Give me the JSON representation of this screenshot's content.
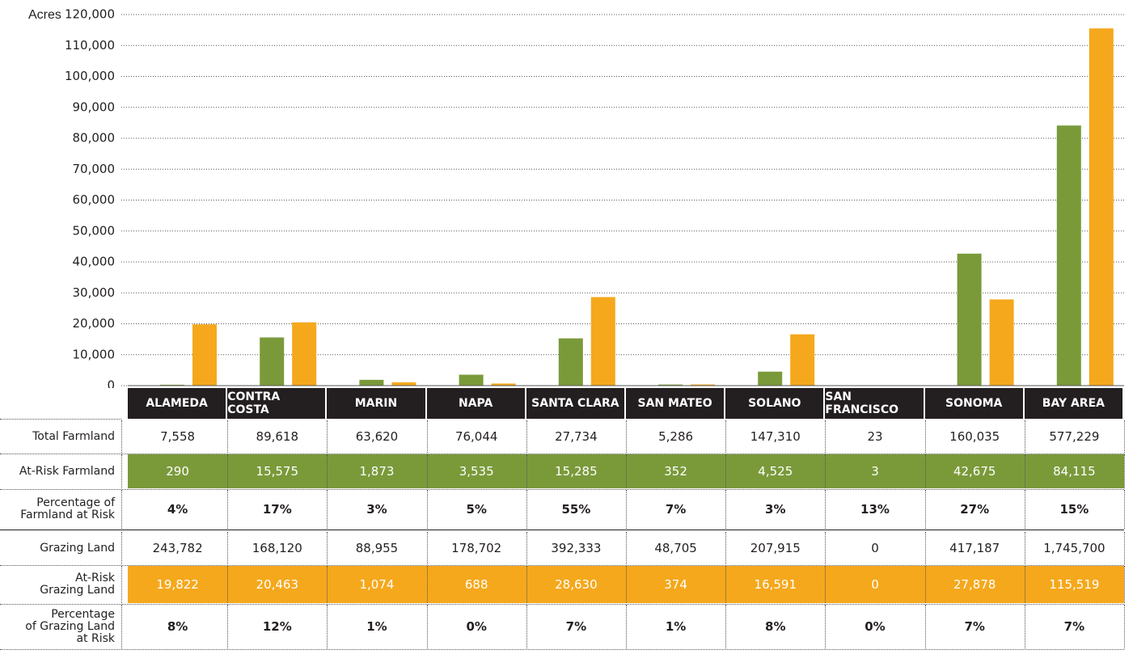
{
  "chart_data": {
    "type": "bar",
    "y_label": "Acres",
    "categories": [
      "ALAMEDA",
      "CONTRA COSTA",
      "MARIN",
      "NAPA",
      "SANTA CLARA",
      "SAN MATEO",
      "SOLANO",
      "SAN FRANCISCO",
      "SONOMA",
      "BAY AREA"
    ],
    "series": [
      {
        "name": "At-Risk Farmland",
        "color": "#7a9a3a",
        "values": [
          290,
          15575,
          1873,
          3535,
          15285,
          352,
          4525,
          3,
          42675,
          84115
        ],
        "value_labels": [
          "290",
          "15,575",
          "1,873",
          "3,535",
          "15,285",
          "352",
          "4,525",
          "3",
          "42,675",
          "84,115"
        ]
      },
      {
        "name": "At-Risk\nGrazing Land",
        "color": "#f5a81c",
        "values": [
          19822,
          20463,
          1074,
          688,
          28630,
          374,
          16591,
          0,
          27878,
          115519
        ],
        "value_labels": [
          "19,822",
          "20,463",
          "1,074",
          "688",
          "28,630",
          "374",
          "16,591",
          "0",
          "27,878",
          "115,519"
        ]
      }
    ],
    "ylim": [
      0,
      120000
    ],
    "yticks": [
      0,
      {
        "value": 10000,
        "label": "10,000"
      },
      {
        "value": 20000,
        "label": "20,000"
      },
      {
        "value": 30000,
        "label": "30,000"
      },
      {
        "value": 40000,
        "label": "40,000"
      },
      {
        "value": 50000,
        "label": "50,000"
      },
      {
        "value": 60000,
        "label": "60,000"
      },
      {
        "value": 70000,
        "label": "70,000"
      },
      {
        "value": 80000,
        "label": "80,000"
      },
      {
        "value": 90000,
        "label": "90,000"
      },
      {
        "value": 100000,
        "label": "100,000"
      },
      {
        "value": 110000,
        "label": "110,000"
      },
      {
        "value": 120000,
        "label": "120,000"
      }
    ],
    "grid": true,
    "table_rows": [
      {
        "label": "Total Farmland",
        "cells": [
          "7,558",
          "89,618",
          "63,620",
          "76,044",
          "27,734",
          "5,286",
          "147,310",
          "23",
          "160,035",
          "577,229"
        ]
      },
      {
        "label": "Percentage of\nFarmland at Risk",
        "cells": [
          "4%",
          "17%",
          "3%",
          "5%",
          "55%",
          "7%",
          "3%",
          "13%",
          "27%",
          "15%"
        ]
      },
      {
        "label": "Grazing Land",
        "cells": [
          "243,782",
          "168,120",
          "88,955",
          "178,702",
          "392,333",
          "48,705",
          "207,915",
          "0",
          "417,187",
          "1,745,700"
        ]
      },
      {
        "label": "Percentage\nof Grazing Land\nat Risk",
        "cells": [
          "8%",
          "12%",
          "1%",
          "0%",
          "7%",
          "1%",
          "8%",
          "0%",
          "7%",
          "7%"
        ]
      }
    ]
  }
}
